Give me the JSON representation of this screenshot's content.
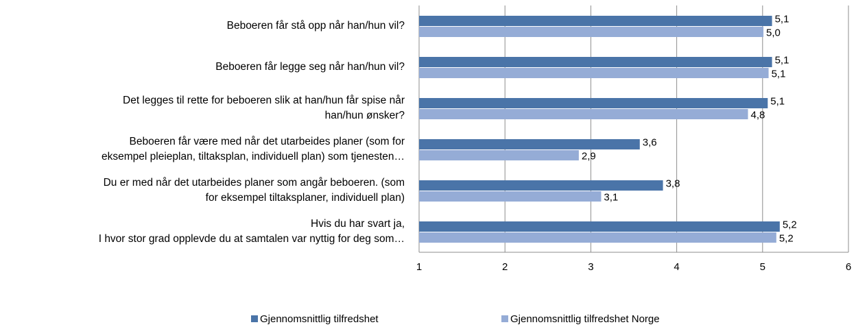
{
  "chart_data": {
    "type": "bar",
    "orientation": "horizontal",
    "categories": [
      "Beboeren får stå opp når han/hun vil?",
      "Beboeren får legge seg når han/hun vil?",
      "Det legges til rette for beboeren slik at han/hun får spise når\nhan/hun ønsker?",
      "Beboeren får være med når det utarbeides planer (som for\neksempel pleieplan, tiltaksplan, individuell plan) som tjenesten…",
      "Du er med når det utarbeides planer som angår beboeren. (som\nfor eksempel tiltaksplaner, individuell plan)",
      "Hvis du har svart ja,\nI hvor stor grad opplevde du at samtalen var nyttig for deg som…"
    ],
    "series": [
      {
        "name": "Gjennomsnittlig tilfredshet",
        "color": "#4a74a8",
        "values": [
          5.11,
          5.11,
          5.06,
          3.57,
          3.84,
          5.2
        ],
        "value_labels": [
          "5,1",
          "5,1",
          "5,1",
          "3,6",
          "3,8",
          "5,2"
        ]
      },
      {
        "name": "Gjennomsnittlig tilfredshet Norge",
        "color": "#95acd6",
        "values": [
          5.01,
          5.07,
          4.83,
          2.86,
          3.12,
          5.16
        ],
        "value_labels": [
          "5,0",
          "5,1",
          "4,8",
          "2,9",
          "3,1",
          "5,2"
        ]
      }
    ],
    "xlim": [
      1,
      6
    ],
    "xticks": [
      1,
      2,
      3,
      4,
      5,
      6
    ],
    "grid": true,
    "legend": "bottom"
  }
}
